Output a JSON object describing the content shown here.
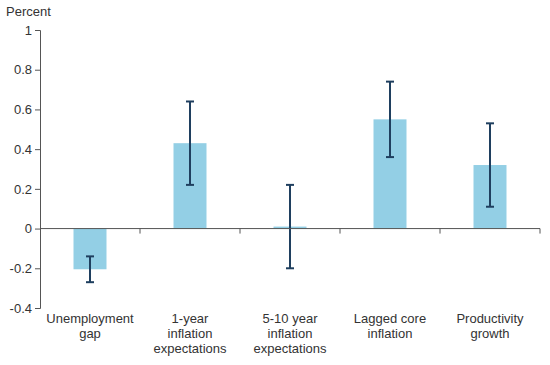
{
  "chart_data": {
    "type": "bar",
    "y_label": "Percent",
    "categories": [
      "Unemployment gap",
      "1-year inflation expectations",
      "5-10 year inflation expectations",
      "Lagged core inflation",
      "Productivity growth"
    ],
    "values": [
      -0.205,
      0.43,
      0.01,
      0.55,
      0.32
    ],
    "errors": [
      0.065,
      0.21,
      0.21,
      0.19,
      0.21
    ],
    "color": "#93cfe5",
    "ylim": [
      -0.4,
      1
    ],
    "yticks": [
      -0.4,
      -0.2,
      0,
      0.2,
      0.4,
      0.6,
      0.8,
      1
    ],
    "grid": false
  }
}
